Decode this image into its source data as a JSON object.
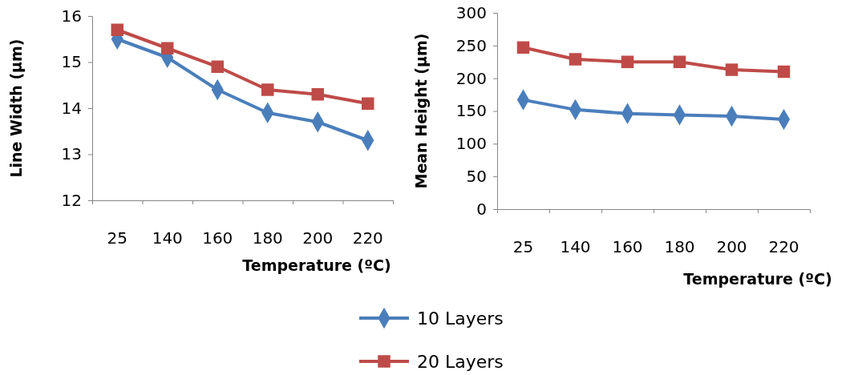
{
  "chart_data": [
    {
      "type": "line",
      "xlabel": "Temperature (ºC)",
      "ylabel": "Line Width (µm)",
      "categories": [
        "25",
        "140",
        "160",
        "180",
        "200",
        "220"
      ],
      "ylim": [
        12,
        16
      ],
      "yticks": [
        12,
        13,
        14,
        15,
        16
      ],
      "series": [
        {
          "color": "#4a7ebb",
          "marker": "diamond",
          "values": [
            15.5,
            15.1,
            14.4,
            13.9,
            13.7,
            13.3
          ]
        },
        {
          "color": "#be4b48",
          "marker": "square",
          "values": [
            15.7,
            15.3,
            14.9,
            14.4,
            14.3,
            14.1
          ]
        }
      ]
    },
    {
      "type": "line",
      "xlabel": "Temperature (ºC)",
      "ylabel": "Mean Height (µm)",
      "categories": [
        "25",
        "140",
        "160",
        "180",
        "200",
        "220"
      ],
      "ylim": [
        0,
        300
      ],
      "yticks": [
        0,
        50,
        100,
        150,
        200,
        250,
        300
      ],
      "legend": "bottom left",
      "series": [
        {
          "name": "10 Layers",
          "color": "#4a7ebb",
          "marker": "diamond",
          "values": [
            167,
            152,
            146,
            144,
            142,
            137
          ]
        },
        {
          "name": "20 Layers",
          "color": "#be4b48",
          "marker": "square",
          "values": [
            247,
            229,
            225,
            225,
            213,
            210
          ]
        }
      ]
    }
  ]
}
